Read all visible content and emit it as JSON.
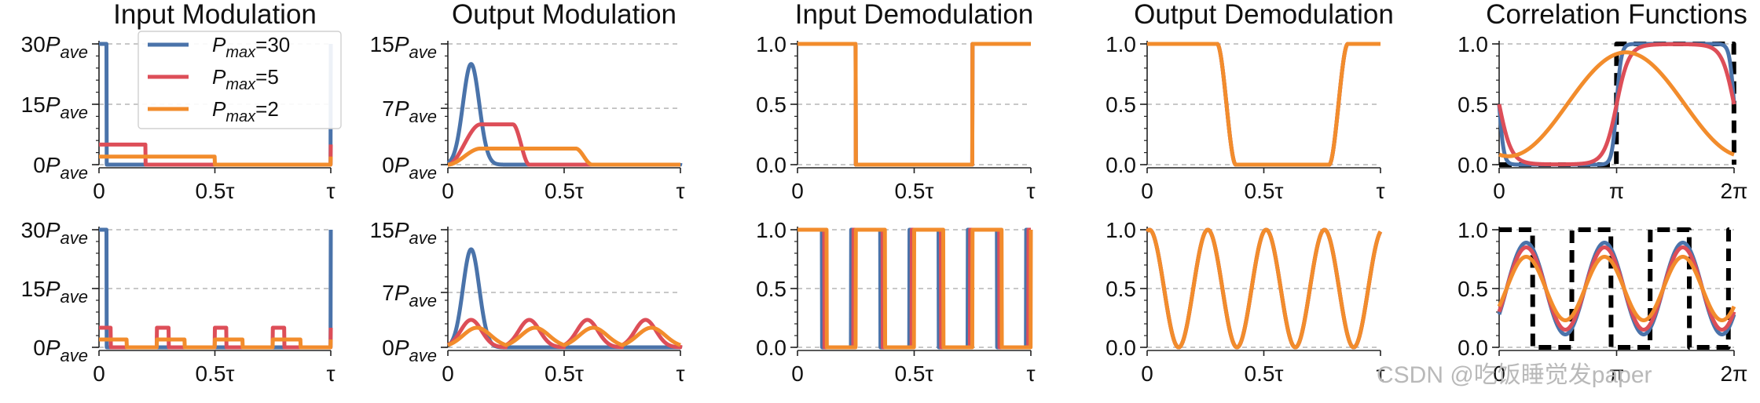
{
  "colors": {
    "Pmax=30": "#4a73aa",
    "Pmax=5": "#dd4e58",
    "Pmax=2": "#f28c2c",
    "ideal": "#000000"
  },
  "legend": {
    "items": [
      {
        "base": "P",
        "sub": "max",
        "suffix": "=30"
      },
      {
        "base": "P",
        "sub": "max",
        "suffix": "=5"
      },
      {
        "base": "P",
        "sub": "max",
        "suffix": "=2"
      }
    ]
  },
  "watermark": "CSDN @吃饭睡觉发paper",
  "chart_data": [
    {
      "type": "line",
      "title": "Input Modulation",
      "row": 1,
      "xticks": [
        "0",
        "0.5τ",
        "τ"
      ],
      "yticks": [
        {
          "base": "0P",
          "sub": "ave"
        },
        {
          "base": "15P",
          "sub": "ave"
        },
        {
          "base": "30P",
          "sub": "ave"
        }
      ],
      "ylim": [
        0,
        30
      ],
      "grid_y": true,
      "series": [
        {
          "name": "Pmax=30",
          "shape": "pulse",
          "amplitude": 30,
          "pulse_width": 0.033,
          "period": 1
        },
        {
          "name": "Pmax=5",
          "shape": "pulse",
          "amplitude": 5,
          "pulse_width": 0.2,
          "period": 1
        },
        {
          "name": "Pmax=2",
          "shape": "pulse",
          "amplitude": 2,
          "pulse_width": 0.5,
          "period": 1
        }
      ]
    },
    {
      "type": "line",
      "title": "Output Modulation",
      "row": 1,
      "xticks": [
        "0",
        "0.5τ",
        "τ"
      ],
      "yticks": [
        {
          "base": "0P",
          "sub": "ave"
        },
        {
          "base": "7P",
          "sub": "ave"
        },
        {
          "base": "15P",
          "sub": "ave"
        }
      ],
      "ylim": [
        0,
        15
      ],
      "grid_y": true,
      "series": [
        {
          "name": "Pmax=30",
          "peak": 12.5,
          "plateau_end": 0.1,
          "period": 1
        },
        {
          "name": "Pmax=5",
          "peak": 5,
          "plateau_end": 0.28,
          "period": 1
        },
        {
          "name": "Pmax=2",
          "peak": 2,
          "plateau_end": 0.55,
          "period": 1
        }
      ]
    },
    {
      "type": "line",
      "title": "Input Demodulation",
      "row": 1,
      "xticks": [
        "0",
        "0.5τ",
        "τ"
      ],
      "yticks": [
        "0.0",
        "0.5",
        "1.0"
      ],
      "ylim": [
        0,
        1
      ],
      "grid_y": true,
      "series": [
        {
          "name": "all",
          "shape": "square",
          "low_from": 0.25,
          "low_to": 0.75,
          "period": 1
        }
      ]
    },
    {
      "type": "line",
      "title": "Output Demodulation",
      "row": 1,
      "xticks": [
        "0",
        "0.5τ",
        "τ"
      ],
      "yticks": [
        "0.0",
        "0.5",
        "1.0"
      ],
      "ylim": [
        0,
        1
      ],
      "grid_y": true,
      "series": [
        {
          "name": "all",
          "shape": "smoothed-square",
          "low_from": 0.38,
          "low_to": 0.8,
          "period": 1
        }
      ]
    },
    {
      "type": "line",
      "title": "Correlation Functions",
      "row": 1,
      "xticks": [
        "0",
        "π",
        "2π"
      ],
      "yticks": [
        "0.0",
        "0.5",
        "1.0"
      ],
      "ylim": [
        0,
        1
      ],
      "grid_y": true,
      "series": [
        {
          "name": "ideal",
          "style": "dashed",
          "shape": "square",
          "cycles": 1
        },
        {
          "name": "Pmax=30",
          "shape": "rounded-square",
          "cycles": 1
        },
        {
          "name": "Pmax=5",
          "shape": "rounded-square",
          "cycles": 1
        },
        {
          "name": "Pmax=2",
          "shape": "sine",
          "amplitude": 0.43,
          "cycles": 1
        }
      ]
    },
    {
      "type": "line",
      "title": "",
      "row": 2,
      "xticks": [
        "0",
        "0.5τ",
        "τ"
      ],
      "yticks": [
        {
          "base": "0P",
          "sub": "ave"
        },
        {
          "base": "15P",
          "sub": "ave"
        },
        {
          "base": "30P",
          "sub": "ave"
        }
      ],
      "ylim": [
        0,
        30
      ],
      "grid_y": true,
      "series": [
        {
          "name": "Pmax=30",
          "shape": "pulse",
          "amplitude": 30,
          "pulse_width": 0.033,
          "period": 1
        },
        {
          "name": "Pmax=5",
          "shape": "pulse",
          "amplitude": 5,
          "pulse_width": 0.05,
          "period": 0.25
        },
        {
          "name": "Pmax=2",
          "shape": "pulse",
          "amplitude": 2,
          "pulse_width": 0.12,
          "period": 0.25
        }
      ]
    },
    {
      "type": "line",
      "title": "",
      "row": 2,
      "xticks": [
        "0",
        "0.5τ",
        "τ"
      ],
      "yticks": [
        {
          "base": "0P",
          "sub": "ave"
        },
        {
          "base": "7P",
          "sub": "ave"
        },
        {
          "base": "15P",
          "sub": "ave"
        }
      ],
      "ylim": [
        0,
        15
      ],
      "grid_y": true,
      "series": [
        {
          "name": "Pmax=30",
          "peak": 12.5,
          "period": 1
        },
        {
          "name": "Pmax=5",
          "peak": 3.5,
          "period": 0.25
        },
        {
          "name": "Pmax=2",
          "peak": 2.5,
          "period": 0.25
        }
      ]
    },
    {
      "type": "line",
      "title": "",
      "row": 2,
      "xticks": [
        "0",
        "0.5τ",
        "τ"
      ],
      "yticks": [
        "0.0",
        "0.5",
        "1.0"
      ],
      "ylim": [
        0,
        1
      ],
      "grid_y": true,
      "series": [
        {
          "name": "all",
          "shape": "square",
          "duty": 0.5,
          "period": 0.25
        }
      ]
    },
    {
      "type": "line",
      "title": "",
      "row": 2,
      "xticks": [
        "0",
        "0.5τ",
        "τ"
      ],
      "yticks": [
        "0.0",
        "0.5",
        "1.0"
      ],
      "ylim": [
        0,
        1
      ],
      "grid_y": true,
      "series": [
        {
          "name": "all",
          "shape": "sine",
          "period": 0.25
        }
      ]
    },
    {
      "type": "line",
      "title": "",
      "row": 2,
      "xticks": [
        "0",
        "π",
        "2π"
      ],
      "yticks": [
        "0.0",
        "0.5",
        "1.0"
      ],
      "ylim": [
        0,
        1
      ],
      "grid_y": true,
      "series": [
        {
          "name": "ideal",
          "style": "dashed",
          "shape": "square",
          "cycles": 3
        },
        {
          "name": "Pmax=30",
          "shape": "sine",
          "amplitude": 0.39,
          "cycles": 3
        },
        {
          "name": "Pmax=5",
          "shape": "sine",
          "amplitude": 0.35,
          "cycles": 3
        },
        {
          "name": "Pmax=2",
          "shape": "sine",
          "amplitude": 0.27,
          "cycles": 3
        }
      ]
    }
  ]
}
